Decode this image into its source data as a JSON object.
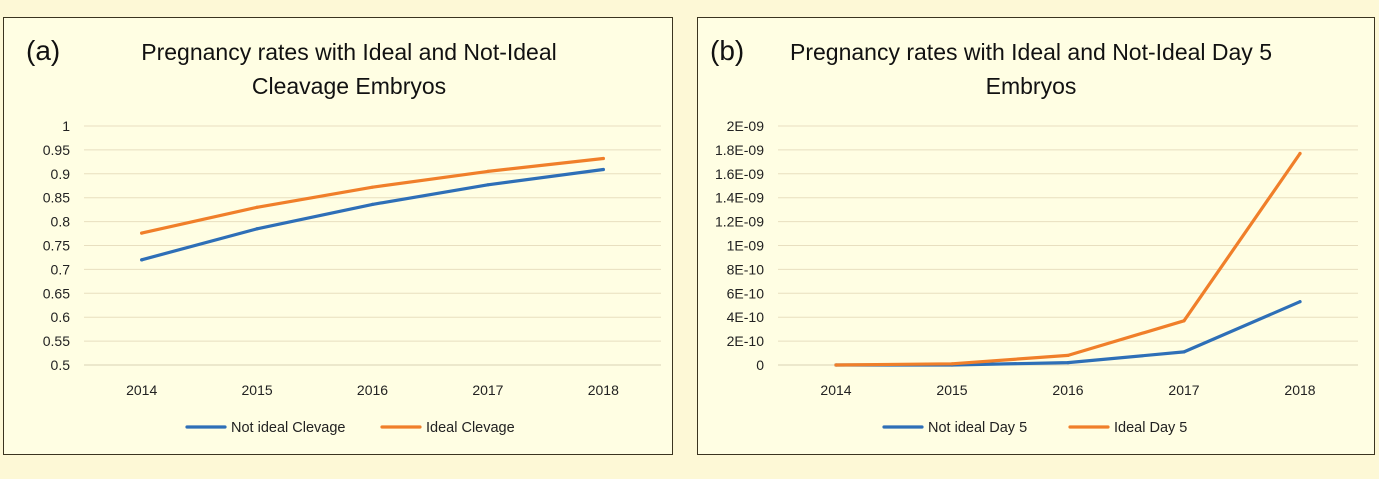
{
  "chart_data": [
    {
      "type": "line",
      "panel_label": "(a)",
      "title_lines": [
        "Pregnancy rates with Ideal and Not-Ideal",
        "Cleavage Embryos"
      ],
      "categories": [
        "2014",
        "2015",
        "2016",
        "2017",
        "2018"
      ],
      "yticks": [
        "0.5",
        "0.55",
        "0.6",
        "0.65",
        "0.7",
        "0.75",
        "0.8",
        "0.85",
        "0.9",
        "0.95",
        "1"
      ],
      "ylim": [
        0.5,
        1
      ],
      "grid": true,
      "legend": "bottom",
      "series": [
        {
          "name": "Not ideal Clevage",
          "color": "#2e6fb7",
          "values": [
            0.72,
            0.785,
            0.836,
            0.877,
            0.909
          ]
        },
        {
          "name": "Ideal Clevage",
          "color": "#f07f2a",
          "values": [
            0.776,
            0.83,
            0.872,
            0.905,
            0.932
          ]
        }
      ]
    },
    {
      "type": "line",
      "panel_label": "(b)",
      "title_lines": [
        "Pregnancy rates with Ideal and Not-Ideal Day 5",
        "Embryos"
      ],
      "categories": [
        "2014",
        "2015",
        "2016",
        "2017",
        "2018"
      ],
      "yticks": [
        "0",
        "2E-10",
        "4E-10",
        "6E-10",
        "8E-10",
        "1E-09",
        "1.2E-09",
        "1.4E-09",
        "1.6E-09",
        "1.8E-09",
        "2E-09"
      ],
      "ylim": [
        0,
        2e-09
      ],
      "grid": true,
      "legend": "bottom",
      "series": [
        {
          "name": "Not ideal Day 5",
          "color": "#2e6fb7",
          "values": [
            0,
            0,
            2e-11,
            1.1e-10,
            5.3e-10
          ]
        },
        {
          "name": "Ideal Day 5",
          "color": "#f07f2a",
          "values": [
            0,
            1e-11,
            8e-11,
            3.7e-10,
            1.77e-09
          ]
        }
      ]
    }
  ]
}
